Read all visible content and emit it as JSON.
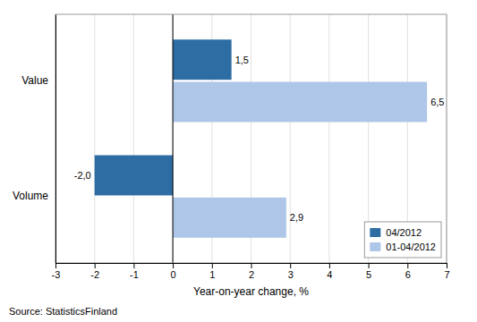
{
  "chart_data": {
    "type": "bar",
    "orientation": "horizontal",
    "categories": [
      "Value",
      "Volume"
    ],
    "series": [
      {
        "name": "04/2012",
        "color": "#2e6da4",
        "values": [
          1.5,
          -2.0
        ],
        "value_labels": [
          "1,5",
          "-2,0"
        ]
      },
      {
        "name": "01-04/2012",
        "color": "#aec6e8",
        "values": [
          6.5,
          2.9
        ],
        "value_labels": [
          "6,5",
          "2,9"
        ]
      }
    ],
    "xlabel": "Year-on-year change, %",
    "xlim": [
      -3,
      7
    ],
    "xticks": [
      -3,
      -2,
      -1,
      0,
      1,
      2,
      3,
      4,
      5,
      6,
      7
    ],
    "grid": true,
    "legend": "lower right",
    "data_labels": true,
    "annotations": [
      "Source: StatisticsFinland"
    ]
  }
}
